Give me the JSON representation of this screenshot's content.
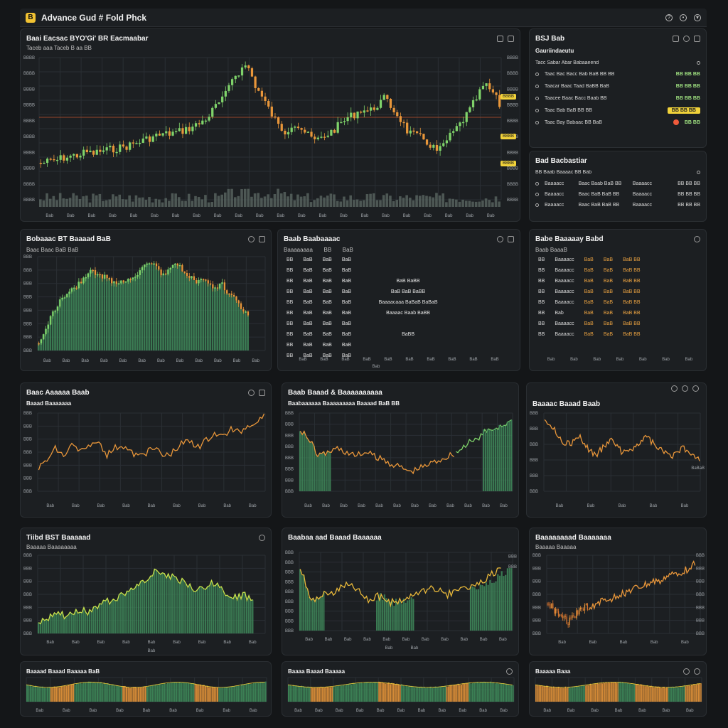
{
  "app": {
    "title": "Advance Gud # Fold Phck",
    "logo": "B"
  },
  "title_icons": [
    "help-icon",
    "settings-icon",
    "wifi-icon"
  ],
  "main_chart": {
    "title": "Baai Eacsac  BYO'Gi'  BR  Eacmaabar",
    "subtitle": "Taceb  aaa  Taceb  B aa  BB",
    "price_tags": [
      "BBBB",
      "BBBB",
      "BBBB"
    ],
    "x_ticks": [
      "Bab",
      "Bab",
      "Bab",
      "Bab",
      "Bab",
      "Bab",
      "Bab",
      "Bab",
      "Bab",
      "Bab",
      "Bab",
      "Bab",
      "Bab",
      "Bab",
      "Bab",
      "Bab",
      "Bab",
      "Bab",
      "Bab",
      "Bab",
      "Bab",
      "Bab"
    ],
    "y_ticks": [
      "BBBB",
      "BBBB",
      "BBBB",
      "BBBB",
      "BBBB",
      "BBBB",
      "BBBB",
      "BBBB",
      "BBBB",
      "BBBB"
    ],
    "series": [
      0.78,
      0.77,
      0.76,
      0.74,
      0.73,
      0.72,
      0.7,
      0.71,
      0.69,
      0.68,
      0.67,
      0.66,
      0.64,
      0.62,
      0.6,
      0.58,
      0.57,
      0.56,
      0.55,
      0.53,
      0.51,
      0.48,
      0.43,
      0.35,
      0.3,
      0.15,
      0.1,
      0.05,
      0.2,
      0.3,
      0.4,
      0.5,
      0.55,
      0.48,
      0.52,
      0.58,
      0.62,
      0.58,
      0.55,
      0.5,
      0.45,
      0.42,
      0.38,
      0.4,
      0.35,
      0.3,
      0.38,
      0.45,
      0.55,
      0.58,
      0.6,
      0.65,
      0.7,
      0.62,
      0.55,
      0.48,
      0.4,
      0.3,
      0.2,
      0.25,
      0.35
    ]
  },
  "watchlist": {
    "title": "BSJ  Bab",
    "subtitle": "Gauriindaeutu",
    "header": "Tacc Sabar   Abar Babaaeend",
    "items": [
      {
        "name": "Taac  Bac  Bacc  Bab  BaB  BB BB",
        "value": "BB BB BB"
      },
      {
        "name": "Taacar  Baac  Taad  BaBB  BaB",
        "value": "BB BB BB"
      },
      {
        "name": "Taacee  Baac  Bacc  Baab  BB",
        "value": "BB BB BB"
      },
      {
        "name": "Taac  Bab  BaB  BB  BB",
        "value": "BB BB BB",
        "highlight": true
      },
      {
        "name": "Taac  Bay  Babaac  BB  BaB",
        "value": "BB BB",
        "alert": true
      }
    ]
  },
  "positions": {
    "title": "Bad  Bacbastiar",
    "subtitle": "BB  Baab  Baaaac  BB  Bab",
    "rows": [
      [
        "Baaaacc",
        "Baac  Baab  BaB BB",
        "Baaaacc",
        "BB BB BB"
      ],
      [
        "Baaaacc",
        "Baac  BaB  BaB BB",
        "Baaaacc",
        "BB BB BB"
      ],
      [
        "Baaaacc",
        "Baac  BaB  BaB BB",
        "Baaaacc",
        "BB BB BB"
      ]
    ]
  },
  "panel_a": {
    "title": "Bobaaac  BT  Baaaad  BaB",
    "subtitle": "Baac  Baac  BaB   BaB",
    "x_ticks": [
      "Bab",
      "Bab",
      "Bab",
      "Bab",
      "Bab",
      "Bab",
      "Bab",
      "Bab",
      "Bab",
      "Bab",
      "Bab",
      "Bab"
    ],
    "y_ticks": [
      "BBB",
      "BBB",
      "BBB",
      "BBB",
      "BBB",
      "BBB",
      "BBB",
      "BBB"
    ],
    "series": [
      0.95,
      0.8,
      0.6,
      0.5,
      0.4,
      0.35,
      0.3,
      0.2,
      0.15,
      0.2,
      0.22,
      0.25,
      0.3,
      0.25,
      0.22,
      0.18,
      0.1,
      0.05,
      0.12,
      0.2,
      0.15,
      0.08,
      0.15,
      0.2,
      0.3,
      0.25,
      0.3,
      0.35,
      0.3,
      0.4,
      0.45,
      0.55,
      0.6
    ]
  },
  "order_book": {
    "title": "Baab  Baabaaaac",
    "headers": [
      "Baaaaaaaa",
      "BB",
      "BaB"
    ],
    "rows": [
      [
        "BB",
        "BaB",
        "BaB",
        "BaB",
        ""
      ],
      [
        "BB",
        "BaB",
        "BaB",
        "BaB",
        ""
      ],
      [
        "BB",
        "BaB",
        "BaB",
        "BaB",
        "BaB BaBB"
      ],
      [
        "BB",
        "BaB",
        "BaB",
        "BaB",
        "BaB BaB BaBB"
      ],
      [
        "BB",
        "BaB",
        "BaB",
        "BaB",
        "Baaaacaaa  BaBaB  BaBaB"
      ],
      [
        "BB",
        "BaB",
        "BaB",
        "BaB",
        "Baaaac  Baab  BaBB"
      ],
      [
        "BB",
        "BaB",
        "BaB",
        "BaB",
        ""
      ],
      [
        "BB",
        "BaB",
        "BaB",
        "BaB",
        "BaBB"
      ],
      [
        "BB",
        "BaB",
        "BaB",
        "BaB",
        ""
      ],
      [
        "BB",
        "BaB",
        "BaB",
        "BaB",
        ""
      ]
    ],
    "x_ticks": [
      "BaB",
      "BaB",
      "BaB",
      "BaB",
      "BaB",
      "BaB",
      "BaB",
      "BaB",
      "BaB",
      "BaB"
    ],
    "footer": "Bab"
  },
  "trades": {
    "title": "Babe  Baaaaay  Babd",
    "subtitle": "Baab   BaaaB",
    "rows": [
      [
        "BB",
        "Baaaacc",
        "BaB",
        "BaB",
        "BaB BB"
      ],
      [
        "BB",
        "Baaaacc",
        "BaB",
        "BaB",
        "BaB BB"
      ],
      [
        "BB",
        "Baaaacc",
        "BaB",
        "BaB",
        "BaB BB"
      ],
      [
        "BB",
        "Baaaacc",
        "BaB",
        "BaB",
        "BaB BB"
      ],
      [
        "BB",
        "Baaaacc",
        "BaB",
        "BaB",
        "BaB BB"
      ],
      [
        "BB",
        "Bab",
        "BaB",
        "BaB",
        "BaB BB"
      ],
      [
        "BB",
        "Baaaacc",
        "BaB",
        "BaB",
        "BaB BB"
      ],
      [
        "BB",
        "Baaaacc",
        "BaB",
        "BaB",
        "BaB BB"
      ]
    ],
    "x_ticks": [
      "Bab",
      "Bab",
      "Bab",
      "Bab",
      "Bab",
      "Bab",
      "Bab"
    ]
  },
  "row3": [
    {
      "title": "Baac  Aaaaaa  Baab",
      "subtitle": "Baaad  Baaaaaaa",
      "color": "#e8963a",
      "x_ticks": [
        "Bab",
        "Bab",
        "Bab",
        "Bab",
        "Bab",
        "Bab",
        "Bab",
        "Bab",
        "Bab"
      ],
      "y_ticks": [
        "BBB",
        "BBB",
        "BBB",
        "BBB",
        "BBB",
        "BBB",
        "BBB"
      ],
      "series": [
        0.7,
        0.6,
        0.45,
        0.55,
        0.4,
        0.5,
        0.45,
        0.35,
        0.55,
        0.45,
        0.4,
        0.5,
        0.55,
        0.5,
        0.45,
        0.55,
        0.5,
        0.4,
        0.35,
        0.45,
        0.35,
        0.25,
        0.3,
        0.2,
        0.25,
        0.15,
        0.1,
        0.05
      ]
    },
    {
      "title": "Baab  Baaad  &  Baaaaaaaaaa",
      "subtitle": "Baabaaaaaa  Baaaaaaaaa   Baaaad  BaB  BB",
      "color": "#e8963a",
      "color2": "#7fd36a",
      "x_ticks": [
        "Bab",
        "Bab",
        "Bab",
        "Bab",
        "Bab",
        "Bab",
        "Bab",
        "Bab",
        "Bab",
        "Bab",
        "Bab",
        "Bab"
      ],
      "y_ticks": [
        "BBB",
        "BBB",
        "BBB",
        "BBB",
        "BBB",
        "BBB",
        "BBB",
        "BBB"
      ],
      "series": [
        0.2,
        0.35,
        0.55,
        0.5,
        0.45,
        0.5,
        0.55,
        0.5,
        0.55,
        0.6,
        0.65,
        0.7,
        0.75,
        0.7,
        0.65,
        0.6,
        0.55,
        0.5,
        0.4,
        0.35,
        0.25,
        0.2,
        0.15,
        0.1
      ]
    },
    {
      "title": "Baaaac  Baaad  Baab",
      "subtitle": "",
      "color": "#e8963a",
      "x_ticks": [
        "Bab",
        "Bab",
        "Bab",
        "Bab",
        "Bab"
      ],
      "y_ticks": [
        "BBB",
        "BBB",
        "BBB",
        "BBB",
        "BBB",
        "BBB"
      ],
      "side_label": "BaBaB",
      "series": [
        0.05,
        0.2,
        0.35,
        0.4,
        0.3,
        0.45,
        0.55,
        0.4,
        0.35,
        0.5,
        0.45,
        0.4,
        0.3,
        0.45,
        0.5,
        0.55,
        0.45,
        0.5,
        0.6
      ]
    }
  ],
  "row4": [
    {
      "title": "Tiibd  BST  Baaaaad",
      "subtitle": "Baaaaa   Baaaaaaaa",
      "color": "#c9e04a",
      "fill": "#3f8a5a",
      "x_ticks": [
        "Bab",
        "Bab",
        "Bab",
        "Bab",
        "Bab",
        "Bab",
        "Bab",
        "Bab",
        "Bab"
      ],
      "y_ticks": [
        "BBB",
        "BBB",
        "BBB",
        "BBB",
        "BBB",
        "BBB",
        "BBB"
      ],
      "footer": "Bab",
      "series": [
        0.85,
        0.8,
        0.75,
        0.78,
        0.7,
        0.72,
        0.65,
        0.6,
        0.55,
        0.5,
        0.4,
        0.3,
        0.2,
        0.25,
        0.3,
        0.35,
        0.45,
        0.4,
        0.35,
        0.45,
        0.55,
        0.5,
        0.6
      ]
    },
    {
      "title": "Baabaa  aad  Baaad  Baaaaaa",
      "subtitle": "",
      "color": "#e8b83a",
      "fill": "#3f8a5a",
      "x_ticks": [
        "Bab",
        "Bab",
        "Bab",
        "Bab",
        "Bab",
        "Bab",
        "Bab",
        "Bab",
        "Bab",
        "Bab",
        "Bab"
      ],
      "y_ticks": [
        "BBB",
        "BBB",
        "BBB",
        "BBB",
        "BBB",
        "BBB",
        "BBB",
        "BBB",
        "BBB"
      ],
      "footer": [
        "Bab",
        "Bab"
      ],
      "series": [
        0.2,
        0.6,
        0.55,
        0.5,
        0.4,
        0.45,
        0.6,
        0.55,
        0.65,
        0.6,
        0.55,
        0.5,
        0.45,
        0.55,
        0.5,
        0.45,
        0.4,
        0.3,
        0.2
      ]
    },
    {
      "title": "Baaaaaaaad  Baaaaaaa",
      "subtitle": "Baaaaa  Baaaaa",
      "color": "#e8963a",
      "x_ticks": [
        "Bab",
        "Bab",
        "Bab",
        "Bab",
        "Bab"
      ],
      "y_ticks": [
        "BBB",
        "BBB",
        "BBB",
        "BBB",
        "BBB",
        "BBB",
        "BBB"
      ],
      "series": [
        0.6,
        0.75,
        0.85,
        0.7,
        0.65,
        0.6,
        0.55,
        0.5,
        0.45,
        0.4,
        0.35,
        0.3,
        0.25,
        0.2,
        0.1
      ]
    }
  ],
  "row5": [
    {
      "title": "Baaaad  Baaad  Baaaaa   BaB",
      "x_ticks": [
        "Bab",
        "Bab",
        "Bab",
        "Bab",
        "Bab",
        "Bab",
        "Bab",
        "Bab",
        "Bab"
      ]
    },
    {
      "title": "Baaaa  Baaad  Baaaaa",
      "x_ticks": [
        "Bab",
        "Bab",
        "Bab",
        "Bab",
        "Bab",
        "Bab",
        "Bab",
        "Bab",
        "Bab",
        "Bab",
        "Bab"
      ]
    },
    {
      "title": "Baaaaa  Baaa",
      "x_ticks": [
        "Bab",
        "Bab",
        "Bab",
        "Bab",
        "Bab",
        "Bab",
        "Bab"
      ]
    }
  ],
  "colors": {
    "green": "#7fd36a",
    "orange": "#e8963a",
    "yellow": "#f1d23a",
    "fill_green": "#3f8a5a",
    "red": "#ef5a3b"
  }
}
